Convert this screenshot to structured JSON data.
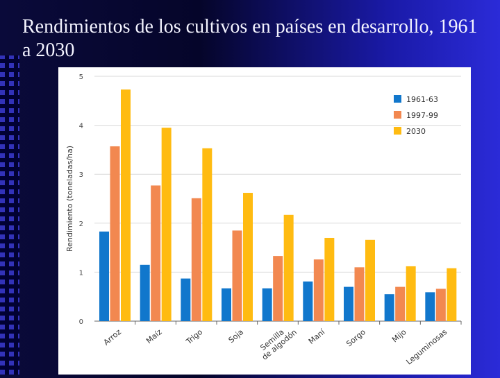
{
  "title": "Rendimientos de los cultivos en países en desarrollo, 1961 a 2030",
  "colors": {
    "s1": "#1177cc",
    "s2": "#f28850",
    "s3": "#ffbb11"
  },
  "chart_data": {
    "type": "bar",
    "title": "",
    "ylabel": "Rendimiento (toneladas/ha)",
    "xlabel": "",
    "ylim": [
      0,
      5
    ],
    "yticks": [
      0,
      1,
      2,
      3,
      4,
      5
    ],
    "grid": true,
    "legend": "top-right",
    "categories": [
      [
        "Arroz"
      ],
      [
        "Maíz"
      ],
      [
        "Trigo"
      ],
      [
        "Soja"
      ],
      [
        "Semilla",
        "de algodón"
      ],
      [
        "Maní"
      ],
      [
        "Sorgo"
      ],
      [
        "Mijo"
      ],
      [
        "Leguminosas"
      ]
    ],
    "series": [
      {
        "name": "1961-63",
        "values": [
          1.83,
          1.15,
          0.87,
          0.67,
          0.67,
          0.81,
          0.7,
          0.55,
          0.59
        ]
      },
      {
        "name": "1997-99",
        "values": [
          3.57,
          2.77,
          2.51,
          1.85,
          1.33,
          1.26,
          1.1,
          0.7,
          0.66
        ]
      },
      {
        "name": "2030",
        "values": [
          4.73,
          3.95,
          3.53,
          2.62,
          2.17,
          1.7,
          1.66,
          1.12,
          1.08
        ]
      }
    ]
  }
}
